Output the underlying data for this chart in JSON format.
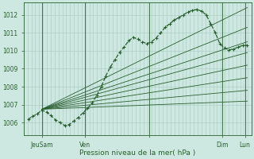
{
  "bg_color": "#cce8e0",
  "grid_color": "#a8c8c0",
  "line_color": "#2a5e30",
  "ylabel_text": "Pression niveau de la mer( hPa )",
  "yticks": [
    1006,
    1007,
    1008,
    1009,
    1010,
    1011,
    1012
  ],
  "ylim": [
    1005.3,
    1012.7
  ],
  "xlim": [
    0.0,
    100.0
  ],
  "xtick_positions": [
    8,
    27,
    55,
    87,
    97
  ],
  "xtick_labels": [
    "JeuSam",
    "Ven",
    "",
    "Dim",
    "Lun"
  ],
  "origin_x": 8,
  "origin_y": 1006.75,
  "fan_endpoints": [
    [
      98,
      1012.4
    ],
    [
      98,
      1011.3
    ],
    [
      98,
      1010.5
    ],
    [
      98,
      1009.9
    ],
    [
      98,
      1009.2
    ],
    [
      98,
      1008.5
    ],
    [
      98,
      1007.8
    ],
    [
      98,
      1007.2
    ]
  ],
  "obs_x": [
    2,
    4,
    6,
    8,
    10,
    12,
    14,
    16,
    18,
    20,
    22,
    24,
    26,
    28,
    30,
    32,
    34,
    36,
    38,
    40,
    42,
    44,
    46,
    48,
    50,
    52,
    54,
    56,
    58,
    60,
    62,
    64,
    66,
    68,
    70,
    72,
    74,
    76,
    78,
    80,
    82,
    84,
    86,
    88,
    90,
    92,
    94,
    96,
    98
  ],
  "obs_y": [
    1006.2,
    1006.35,
    1006.5,
    1006.7,
    1006.6,
    1006.4,
    1006.15,
    1006.0,
    1005.85,
    1005.9,
    1006.1,
    1006.3,
    1006.55,
    1006.8,
    1007.1,
    1007.5,
    1008.0,
    1008.6,
    1009.1,
    1009.5,
    1009.9,
    1010.2,
    1010.55,
    1010.75,
    1010.65,
    1010.5,
    1010.4,
    1010.5,
    1010.7,
    1011.0,
    1011.3,
    1011.5,
    1011.7,
    1011.85,
    1012.0,
    1012.15,
    1012.25,
    1012.3,
    1012.2,
    1012.0,
    1011.5,
    1011.0,
    1010.4,
    1010.15,
    1010.05,
    1010.1,
    1010.2,
    1010.3,
    1010.3
  ],
  "n_grid_v": 60
}
